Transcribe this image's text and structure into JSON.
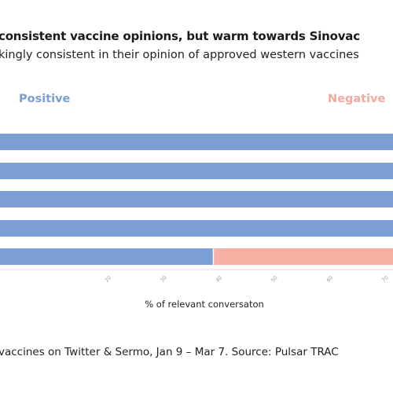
{
  "header": {
    "title": "consistent vaccine opinions, but warm towards Sinovac",
    "subtitle": "kingly consistent in their opinion of approved western vaccines"
  },
  "legend": {
    "positive": "Positive",
    "negative": "Negative"
  },
  "footnote": "vaccines on Twitter & Sermo, Jan 9 – Mar 7. Source: Pulsar TRAC",
  "colors": {
    "positive": "#7b9fd4",
    "negative": "#f5afa3"
  },
  "chart_data": {
    "type": "bar",
    "orientation": "horizontal",
    "stacked": true,
    "xlabel": "% of relevant conversaton",
    "xlim": [
      0,
      100
    ],
    "xticks": [
      "20",
      "30",
      "40",
      "50",
      "60",
      "70",
      "80"
    ],
    "categories": [
      "",
      "",
      "",
      "",
      ""
    ],
    "series": [
      {
        "name": "Positive",
        "values": [
          100,
          100,
          80,
          79,
          39
        ]
      },
      {
        "name": "Negative",
        "values": [
          0,
          0,
          20,
          21,
          61
        ]
      }
    ],
    "grid": false,
    "legend_position": "top"
  }
}
